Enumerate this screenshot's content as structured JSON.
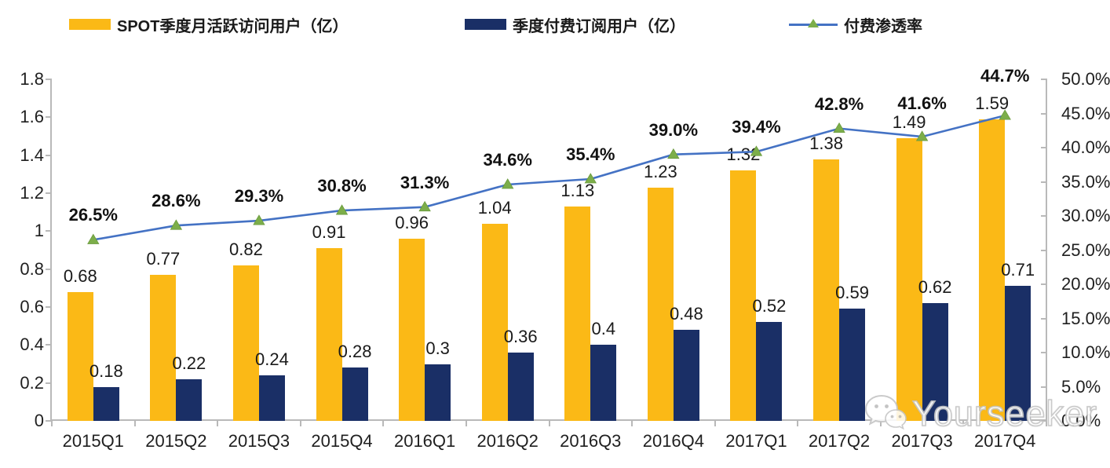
{
  "legend": {
    "items": [
      {
        "label": "SPOT季度月活跃访问用户（亿）",
        "type": "bar",
        "color": "#FBB916"
      },
      {
        "label": "季度付费订阅用户（亿）",
        "type": "bar",
        "color": "#1A2F66"
      },
      {
        "label": "付费渗透率",
        "type": "line",
        "color": "#4472C4",
        "marker_color": "#7CAE4A"
      }
    ]
  },
  "watermark": {
    "text": "Yourseeker",
    "icon": "wechat-icon"
  },
  "chart_data": {
    "type": "combo-bar-line",
    "categories": [
      "2015Q1",
      "2015Q2",
      "2015Q3",
      "2015Q4",
      "2016Q1",
      "2016Q2",
      "2016Q3",
      "2016Q4",
      "2017Q1",
      "2017Q2",
      "2017Q3",
      "2017Q4"
    ],
    "series": [
      {
        "name": "SPOT季度月活跃访问用户（亿）",
        "type": "bar",
        "axis": "left",
        "color": "#FBB916",
        "values": [
          0.68,
          0.77,
          0.82,
          0.91,
          0.96,
          1.04,
          1.13,
          1.23,
          1.32,
          1.38,
          1.49,
          1.59
        ],
        "value_labels": [
          "0.68",
          "0.77",
          "0.82",
          "0.91",
          "0.96",
          "1.04",
          "1.13",
          "1.23",
          "1.32",
          "1.38",
          "1.49",
          "1.59"
        ]
      },
      {
        "name": "季度付费订阅用户（亿）",
        "type": "bar",
        "axis": "left",
        "color": "#1A2F66",
        "values": [
          0.18,
          0.22,
          0.24,
          0.28,
          0.3,
          0.36,
          0.4,
          0.48,
          0.52,
          0.59,
          0.62,
          0.71
        ],
        "value_labels": [
          "0.18",
          "0.22",
          "0.24",
          "0.28",
          "0.3",
          "0.36",
          "0.4",
          "0.48",
          "0.52",
          "0.59",
          "0.62",
          "0.71"
        ]
      },
      {
        "name": "付费渗透率",
        "type": "line",
        "axis": "right",
        "color": "#4472C4",
        "marker_color": "#7CAE4A",
        "values": [
          26.5,
          28.6,
          29.3,
          30.8,
          31.3,
          34.6,
          35.4,
          39.0,
          39.4,
          42.8,
          41.6,
          44.7
        ],
        "value_labels": [
          "26.5%",
          "28.6%",
          "29.3%",
          "30.8%",
          "31.3%",
          "34.6%",
          "35.4%",
          "39.0%",
          "39.4%",
          "42.8%",
          "41.6%",
          "44.7%"
        ]
      }
    ],
    "left_axis": {
      "min": 0,
      "max": 1.8,
      "tick_labels": [
        "0",
        "0.2",
        "0.4",
        "0.6",
        "0.8",
        "1",
        "1.2",
        "1.4",
        "1.6",
        "1.8"
      ]
    },
    "right_axis": {
      "min": 0,
      "max": 50,
      "tick_labels": [
        "0.0%",
        "5.0%",
        "10.0%",
        "15.0%",
        "20.0%",
        "25.0%",
        "30.0%",
        "35.0%",
        "40.0%",
        "45.0%",
        "50.0%"
      ]
    },
    "grid": false,
    "legend_position": "top"
  }
}
